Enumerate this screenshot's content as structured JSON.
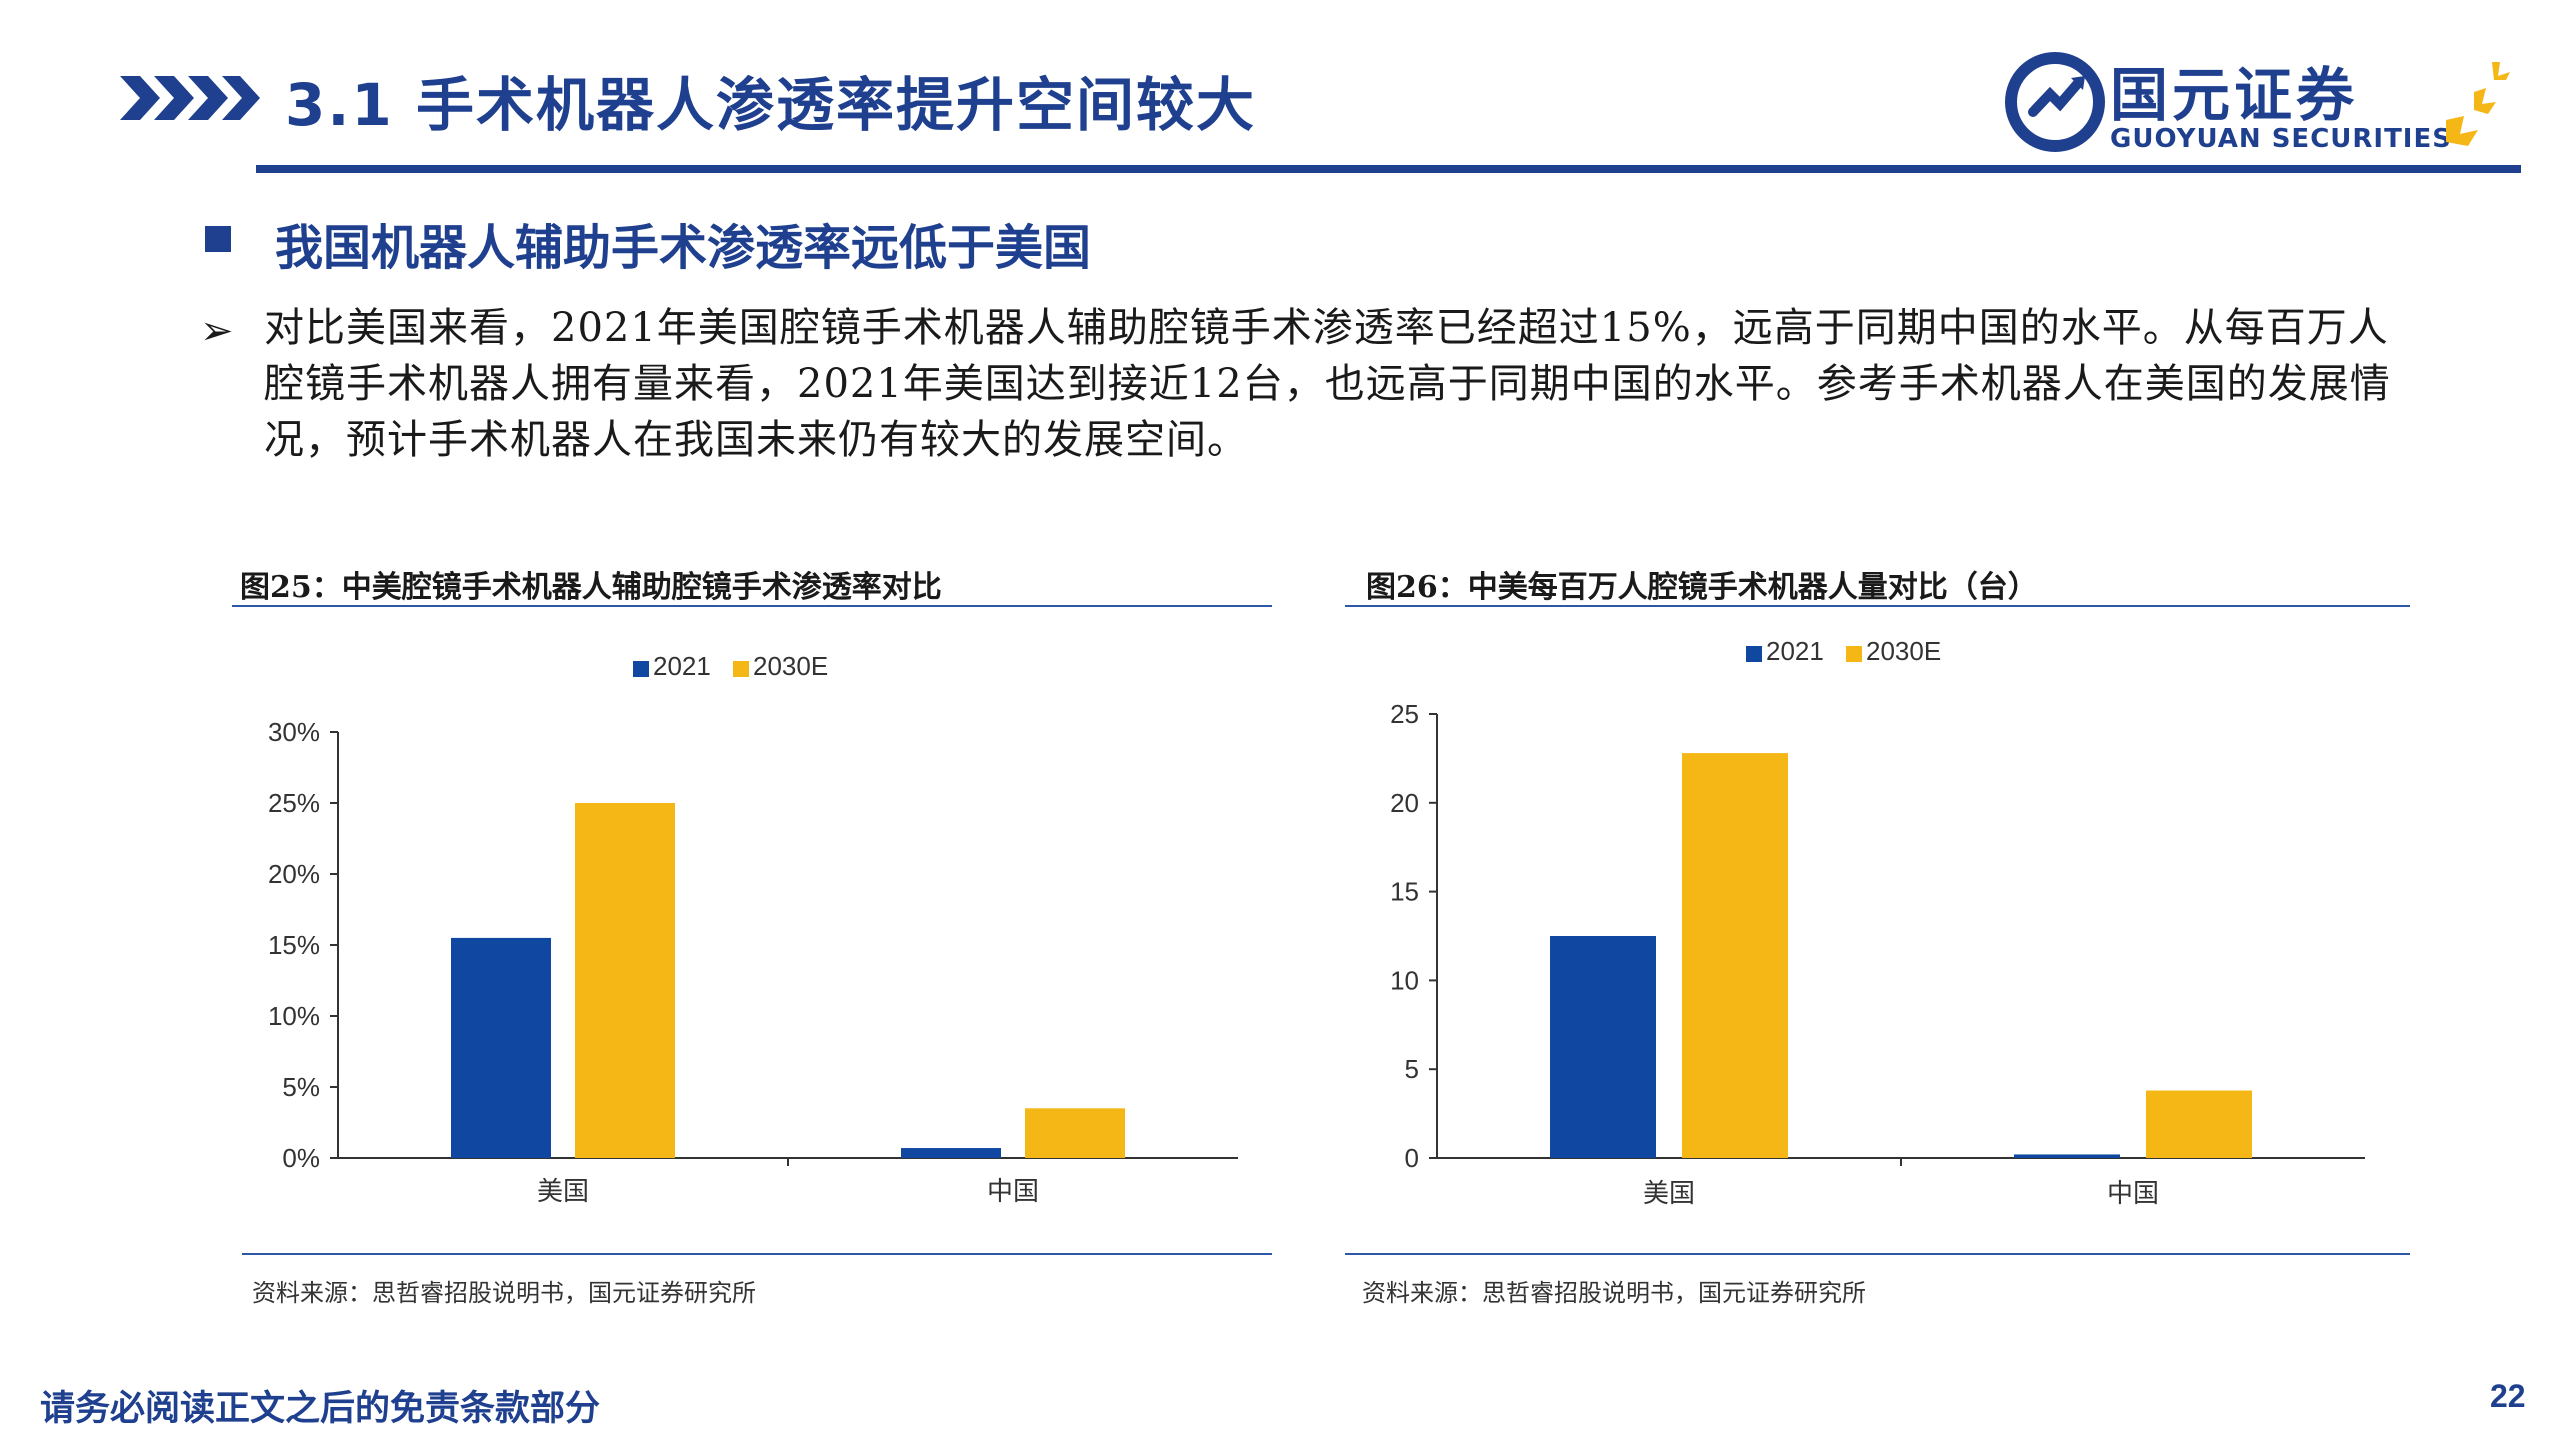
{
  "header": {
    "title": "3.1 手术机器人渗透率提升空间较大",
    "logo_cn": "国元证券",
    "logo_en": "GUOYUAN SECURITIES"
  },
  "section": {
    "title": "我国机器人辅助手术渗透率远低于美国"
  },
  "body": {
    "bullet_symbol": "➢",
    "paragraph": "对比美国来看，2021年美国腔镜手术机器人辅助腔镜手术渗透率已经超过15%，远高于同期中国的水平。从每百万人腔镜手术机器人拥有量来看，2021年美国达到接近12台，也远高于同期中国的水平。参考手术机器人在美国的发展情况，预计手术机器人在我国未来仍有较大的发展空间。"
  },
  "figures": [
    {
      "title": "图25：中美腔镜手术机器人辅助腔镜手术渗透率对比",
      "source": "资料来源：思哲睿招股说明书，国元证券研究所"
    },
    {
      "title": "图26：中美每百万人腔镜手术机器人量对比（台）",
      "source": "资料来源：思哲睿招股说明书，国元证券研究所"
    }
  ],
  "colors": {
    "brand": "#1f3f8f",
    "series_2021": "#0f47a1",
    "series_2030E": "#f5b716"
  },
  "chart_data": [
    {
      "type": "bar",
      "title": "图25：中美腔镜手术机器人辅助腔镜手术渗透率对比",
      "categories": [
        "美国",
        "中国"
      ],
      "series": [
        {
          "name": "2021",
          "values": [
            15.5,
            0.7
          ]
        },
        {
          "name": "2030E",
          "values": [
            25,
            3.5
          ]
        }
      ],
      "ylim": [
        0,
        30
      ],
      "yticks": [
        0,
        5,
        10,
        15,
        20,
        25,
        30
      ],
      "ytick_labels": [
        "0%",
        "5%",
        "10%",
        "15%",
        "20%",
        "25%",
        "30%"
      ],
      "legend": "top-center",
      "grid": false
    },
    {
      "type": "bar",
      "title": "图26：中美每百万人腔镜手术机器人量对比（台）",
      "categories": [
        "美国",
        "中国"
      ],
      "series": [
        {
          "name": "2021",
          "values": [
            12.5,
            0.2
          ]
        },
        {
          "name": "2030E",
          "values": [
            22.8,
            3.8
          ]
        }
      ],
      "ylim": [
        0,
        25
      ],
      "yticks": [
        0,
        5,
        10,
        15,
        20,
        25
      ],
      "ytick_labels": [
        "0",
        "5",
        "10",
        "15",
        "20",
        "25"
      ],
      "legend": "top-center",
      "grid": false
    }
  ],
  "footer": {
    "disclaimer": "请务必阅读正文之后的免责条款部分",
    "page_number": "22"
  }
}
